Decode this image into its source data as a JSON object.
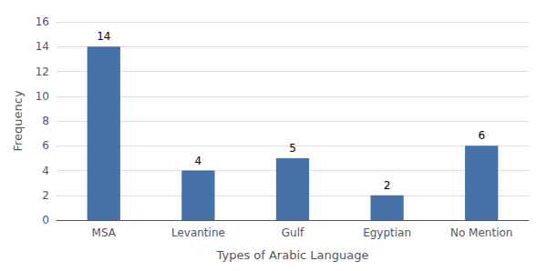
{
  "chart_data": {
    "type": "bar",
    "categories": [
      "MSA",
      "Levantine",
      "Gulf",
      "Egyptian",
      "No Mention"
    ],
    "values": [
      14,
      4,
      5,
      2,
      6
    ],
    "color": "#4472a8",
    "xlabel": "Types of Arabic Language",
    "ylabel": "Frequency",
    "ylim": [
      0,
      16
    ],
    "yticks": [
      0,
      2,
      4,
      6,
      8,
      10,
      12,
      14,
      16
    ],
    "grid": true,
    "data_labels": true
  }
}
